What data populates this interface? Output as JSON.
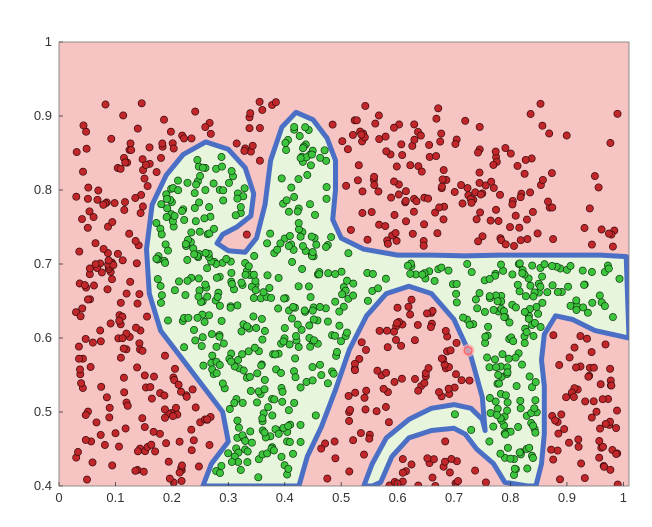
{
  "chart_data": {
    "type": "scatter",
    "title": "",
    "xlabel": "",
    "ylabel": "",
    "xlim": [
      0,
      1.01
    ],
    "ylim": [
      0.4,
      1.0
    ],
    "x_ticks": [
      "0",
      "0.1",
      "0.2",
      "0.3",
      "0.4",
      "0.5",
      "0.6",
      "0.7",
      "0.8",
      "0.9",
      "1"
    ],
    "y_ticks": [
      "0.4",
      "0.5",
      "0.6",
      "0.7",
      "0.8",
      "0.9",
      "1"
    ],
    "grid": false,
    "legend": "none",
    "colors": {
      "negative_region": "#f7c4c4",
      "positive_region": "#e6f5dc",
      "boundary": "#4a6fc4",
      "negative_points": "#c0262a",
      "positive_points": "#3cc43c",
      "highlight_point": "#ff6060"
    },
    "decision_boundary": [
      [
        0.255,
        0.4
      ],
      [
        0.27,
        0.43
      ],
      [
        0.3,
        0.46
      ],
      [
        0.29,
        0.5
      ],
      [
        0.25,
        0.54
      ],
      [
        0.22,
        0.57
      ],
      [
        0.18,
        0.61
      ],
      [
        0.16,
        0.66
      ],
      [
        0.155,
        0.72
      ],
      [
        0.165,
        0.78
      ],
      [
        0.19,
        0.82
      ],
      [
        0.22,
        0.848
      ],
      [
        0.26,
        0.865
      ],
      [
        0.3,
        0.855
      ],
      [
        0.33,
        0.83
      ],
      [
        0.345,
        0.795
      ],
      [
        0.34,
        0.765
      ],
      [
        0.315,
        0.75
      ],
      [
        0.29,
        0.74
      ],
      [
        0.28,
        0.728
      ],
      [
        0.3,
        0.718
      ],
      [
        0.33,
        0.716
      ],
      [
        0.35,
        0.735
      ],
      [
        0.365,
        0.78
      ],
      [
        0.375,
        0.84
      ],
      [
        0.395,
        0.885
      ],
      [
        0.42,
        0.905
      ],
      [
        0.45,
        0.895
      ],
      [
        0.475,
        0.87
      ],
      [
        0.49,
        0.84
      ],
      [
        0.49,
        0.8
      ],
      [
        0.485,
        0.76
      ],
      [
        0.5,
        0.735
      ],
      [
        0.54,
        0.72
      ],
      [
        0.6,
        0.712
      ],
      [
        0.66,
        0.712
      ],
      [
        0.72,
        0.711
      ],
      [
        0.78,
        0.712
      ],
      [
        0.84,
        0.712
      ],
      [
        0.9,
        0.712
      ],
      [
        0.96,
        0.712
      ],
      [
        1.005,
        0.71
      ],
      [
        1.01,
        0.6
      ],
      [
        0.95,
        0.61
      ],
      [
        0.91,
        0.625
      ],
      [
        0.88,
        0.63
      ],
      [
        0.86,
        0.605
      ],
      [
        0.855,
        0.57
      ],
      [
        0.86,
        0.535
      ],
      [
        0.86,
        0.47
      ],
      [
        0.855,
        0.43
      ],
      [
        0.845,
        0.4
      ],
      [
        0.83,
        0.4
      ],
      [
        0.79,
        0.405
      ],
      [
        0.77,
        0.43
      ],
      [
        0.74,
        0.45
      ],
      [
        0.72,
        0.47
      ],
      [
        0.7,
        0.478
      ],
      [
        0.66,
        0.475
      ],
      [
        0.62,
        0.465
      ],
      [
        0.59,
        0.44
      ],
      [
        0.57,
        0.405
      ],
      [
        0.555,
        0.4
      ],
      [
        0.54,
        0.4
      ],
      [
        0.555,
        0.43
      ],
      [
        0.58,
        0.465
      ],
      [
        0.62,
        0.49
      ],
      [
        0.66,
        0.505
      ],
      [
        0.7,
        0.51
      ],
      [
        0.73,
        0.505
      ],
      [
        0.75,
        0.49
      ],
      [
        0.755,
        0.475
      ],
      [
        0.75,
        0.52
      ],
      [
        0.73,
        0.575
      ],
      [
        0.7,
        0.625
      ],
      [
        0.66,
        0.66
      ],
      [
        0.62,
        0.67
      ],
      [
        0.58,
        0.66
      ],
      [
        0.545,
        0.63
      ],
      [
        0.515,
        0.585
      ],
      [
        0.49,
        0.53
      ],
      [
        0.465,
        0.48
      ],
      [
        0.44,
        0.44
      ],
      [
        0.425,
        0.4
      ],
      [
        0.255,
        0.4
      ]
    ],
    "pattern": {
      "seed": 12345,
      "negative_count": 560,
      "positive_count": 600,
      "marker_radius_px": 3.6
    },
    "highlight_point": {
      "x": 0.725,
      "y": 0.583
    }
  }
}
